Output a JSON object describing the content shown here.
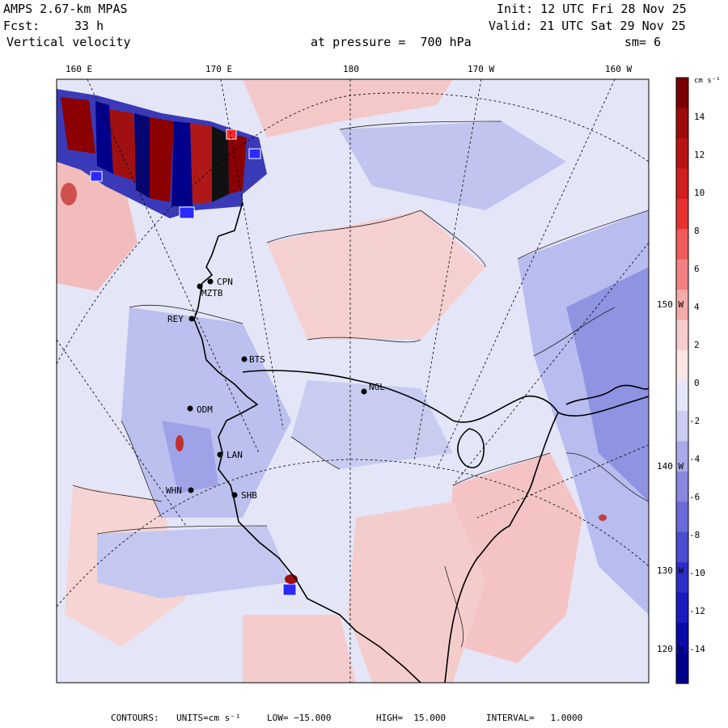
{
  "header": {
    "model": "AMPS 2.67-km MPAS",
    "init": "Init: 12 UTC Fri 28 Nov 25",
    "fcst_label": "Fcst:",
    "fcst_value": "33 h",
    "valid": "Valid: 21 UTC Sat 29 Nov 25",
    "field": "Vertical velocity",
    "pressure": "at pressure =  700 hPa",
    "smoothing": "sm= 6"
  },
  "longitude_labels": [
    "160 E",
    "170 E",
    "180",
    "170 W",
    "160 W"
  ],
  "latitude_labels": [
    "150 W",
    "140 W",
    "130 W",
    "120 W"
  ],
  "stations": [
    {
      "code": "CPN"
    },
    {
      "code": "MZTB"
    },
    {
      "code": "REY"
    },
    {
      "code": "BTS"
    },
    {
      "code": "NGL"
    },
    {
      "code": "ODM"
    },
    {
      "code": "LAN"
    },
    {
      "code": "WHN"
    },
    {
      "code": "SHB"
    }
  ],
  "colorbar": {
    "units": "cm s⁻¹",
    "labels": [
      "14",
      "12",
      "10",
      "8",
      "6",
      "4",
      "2",
      "0",
      "-2",
      "-4",
      "-6",
      "-8",
      "-10",
      "-12",
      "-14"
    ],
    "colors": [
      "#7a0000",
      "#9c0a0a",
      "#b81414",
      "#d11e1e",
      "#e83232",
      "#f05a5a",
      "#f28282",
      "#f5aaaa",
      "#f8cccc",
      "#fbe6e6",
      "#e6e6fb",
      "#ccccf2",
      "#aaaaea",
      "#8888e0",
      "#6a6ad8",
      "#4c4ccf",
      "#2e2ec8",
      "#1a1abf",
      "#0a0aa8",
      "#00008c"
    ]
  },
  "colors": {
    "background_field": "#e4e6f8",
    "positive": "#f2b8b8",
    "negative": "#b4b8ec",
    "strong_positive": "#8b0000",
    "strong_negative": "#00008b"
  },
  "footer": {
    "contours": "CONTOURS:",
    "units": "UNITS=cm s⁻¹",
    "low": "LOW= −15.000",
    "high": "HIGH=  15.000",
    "interval": "INTERVAL=   1.0000"
  }
}
